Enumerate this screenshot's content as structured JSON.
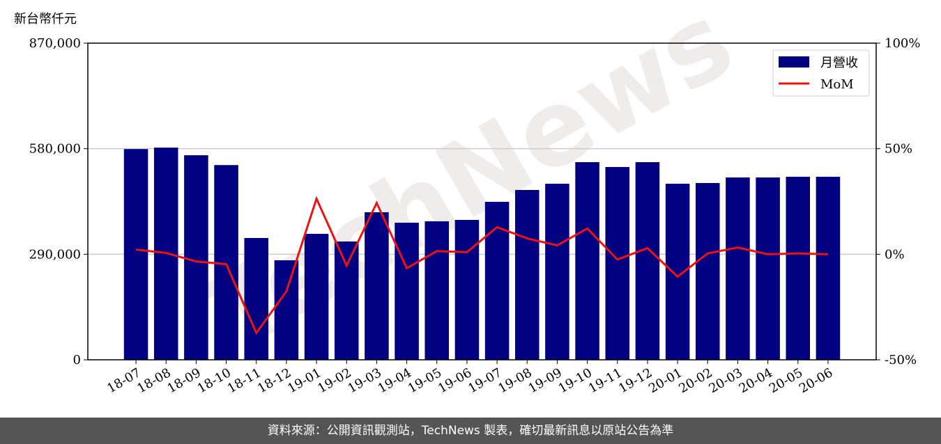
{
  "chart_data": {
    "type": "bar",
    "ylabel": "新台幣仟元",
    "watermark": "TechNews",
    "categories": [
      "18-07",
      "18-08",
      "18-09",
      "18-10",
      "18-11",
      "18-12",
      "19-01",
      "19-02",
      "19-03",
      "19-04",
      "19-05",
      "19-06",
      "19-07",
      "19-08",
      "19-09",
      "19-10",
      "19-11",
      "19-12",
      "20-01",
      "20-02",
      "20-03",
      "20-04",
      "20-05",
      "20-06"
    ],
    "series": [
      {
        "name": "月營收",
        "color": "#000080",
        "values": [
          579000,
          583000,
          562000,
          535000,
          334600,
          273400,
          346100,
          325000,
          405400,
          376700,
          380500,
          384300,
          434000,
          466600,
          483800,
          543000,
          529700,
          543000,
          483800,
          485700,
          501000,
          501000,
          502900,
          502900
        ]
      },
      {
        "name": "MoM",
        "color": "#ee1111",
        "axis": "y2",
        "values": [
          2.2,
          0.6,
          -3.4,
          -4.7,
          -37.3,
          -17.6,
          26.3,
          -5.4,
          24.3,
          -6.6,
          1.5,
          1.0,
          12.8,
          7.5,
          4.2,
          12.2,
          -2.5,
          2.9,
          -10.6,
          0.4,
          3.2,
          0.0,
          0.4,
          0.0
        ]
      }
    ],
    "ylim": [
      0,
      870000
    ],
    "yticks": [
      0,
      {
        "value": 290000,
        "label": "290,000"
      },
      {
        "value": 580000,
        "label": "580,000"
      },
      {
        "value": 870000,
        "label": "870,000"
      }
    ],
    "y2lim": [
      -50,
      100
    ],
    "y2ticks": [
      {
        "value": -50,
        "label": "-50%"
      },
      {
        "value": 0,
        "label": "0%"
      },
      {
        "value": 50,
        "label": "50%"
      },
      {
        "value": 100,
        "label": "100%"
      }
    ],
    "grid": true,
    "legend": "upper right",
    "source": "資料來源：公開資訊觀測站，TechNews 製表，確切最新訊息以原站公告為準"
  }
}
